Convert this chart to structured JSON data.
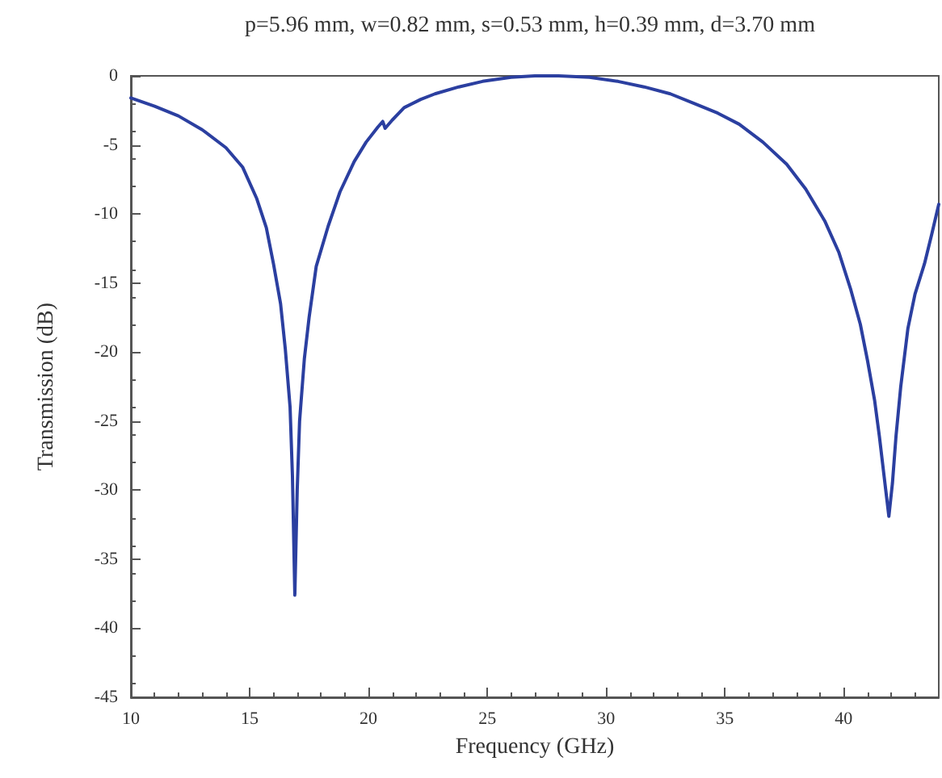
{
  "chart_data": {
    "type": "line",
    "title": "p=5.96 mm, w=0.82 mm, s=0.53 mm, h=0.39 mm, d=3.70 mm",
    "xlabel": "Frequency (GHz)",
    "ylabel": "Transmission (dB)",
    "xlim": [
      10,
      44
    ],
    "xticks": [
      10,
      15,
      20,
      25,
      30,
      35,
      40
    ],
    "ylim": [
      -45,
      0
    ],
    "yticks": [
      0,
      -5,
      -10,
      -15,
      -20,
      -25,
      -30,
      -35,
      -40,
      -45
    ],
    "grid": false,
    "marker": "none",
    "line_style": "solid",
    "series": [
      {
        "color": "#2b3fa0",
        "x": [
          10,
          11,
          12,
          13,
          14,
          14.7,
          15.3,
          15.7,
          16,
          16.3,
          16.5,
          16.7,
          16.8,
          16.9,
          17,
          17.1,
          17.3,
          17.5,
          17.8,
          18.3,
          18.8,
          19.4,
          19.9,
          20.4,
          20.6,
          20.7,
          21,
          21.5,
          22.2,
          22.8,
          23.8,
          24.8,
          26,
          27,
          28,
          29.3,
          30.5,
          31.6,
          32.7,
          33.7,
          34.7,
          35.6,
          36.6,
          37.6,
          38.4,
          39.2,
          39.8,
          40.3,
          40.7,
          41,
          41.3,
          41.5,
          41.7,
          41.9,
          42.05,
          42.2,
          42.4,
          42.7,
          43,
          43.4,
          43.7,
          44
        ],
        "values": [
          -1.6,
          -2.2,
          -2.9,
          -3.9,
          -5.2,
          -6.6,
          -8.9,
          -11,
          -13.6,
          -16.5,
          -19.8,
          -24,
          -29,
          -37.6,
          -30,
          -25,
          -20.5,
          -17.5,
          -13.8,
          -10.9,
          -8.4,
          -6.2,
          -4.8,
          -3.7,
          -3.3,
          -3.8,
          -3.2,
          -2.3,
          -1.7,
          -1.3,
          -0.8,
          -0.4,
          -0.1,
          0,
          0,
          -0.1,
          -0.4,
          -0.8,
          -1.3,
          -2,
          -2.7,
          -3.5,
          -4.8,
          -6.4,
          -8.2,
          -10.5,
          -12.8,
          -15.5,
          -18,
          -20.6,
          -23.5,
          -26.1,
          -29,
          -31.9,
          -29.5,
          -26.1,
          -22.5,
          -18.3,
          -15.8,
          -13.6,
          -11.5,
          -9.3
        ]
      }
    ]
  }
}
